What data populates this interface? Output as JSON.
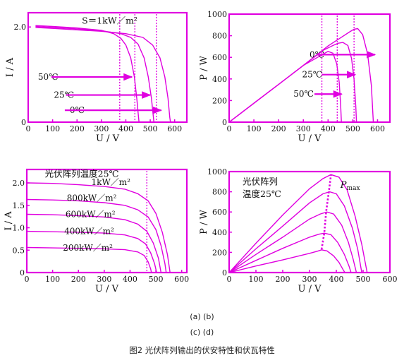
{
  "captions": {
    "line1": "(a)  (b)",
    "line2": "(c)  (d)",
    "figure": "图2 光伏阵列输出的伏安特性和伏瓦特性"
  },
  "colors": {
    "curve": "#e000e0",
    "arrow": "#e000e0",
    "text": "#111111",
    "background": "#ffffff"
  },
  "chart_data": [
    {
      "id": "a",
      "type": "line",
      "xlabel": "U / V",
      "ylabel": "I / A",
      "xlim": [
        0,
        650
      ],
      "ylim": [
        0,
        2.3
      ],
      "xticks": [
        0,
        100,
        200,
        300,
        400,
        500,
        600
      ],
      "xtick_labels": [
        "0",
        "100",
        "200",
        "300",
        "400",
        "500",
        "600"
      ],
      "yticks": [
        0,
        2.0
      ],
      "ytick_labels": [
        "0",
        "2.0"
      ],
      "annotations": [
        {
          "text": "S＝1kW／m²",
          "x": 220,
          "y": 2.13
        }
      ],
      "series": [
        {
          "name": "50℃",
          "label_pos": [
            40,
            0.95
          ],
          "marker_x": 375,
          "points": [
            [
              30,
              2.03
            ],
            [
              100,
              2.01
            ],
            [
              200,
              1.98
            ],
            [
              300,
              1.93
            ],
            [
              350,
              1.86
            ],
            [
              380,
              1.76
            ],
            [
              400,
              1.62
            ],
            [
              420,
              1.35
            ],
            [
              435,
              0.95
            ],
            [
              445,
              0.5
            ],
            [
              452,
              0.1
            ],
            [
              454,
              0
            ]
          ]
        },
        {
          "name": "25℃",
          "label_pos": [
            105,
            0.57
          ],
          "marker_x": 437,
          "points": [
            [
              30,
              2.01
            ],
            [
              100,
              1.99
            ],
            [
              200,
              1.96
            ],
            [
              300,
              1.92
            ],
            [
              380,
              1.86
            ],
            [
              420,
              1.78
            ],
            [
              450,
              1.64
            ],
            [
              475,
              1.35
            ],
            [
              492,
              0.95
            ],
            [
              505,
              0.5
            ],
            [
              513,
              0.1
            ],
            [
              515,
              0
            ]
          ]
        },
        {
          "name": "0℃",
          "label_pos": [
            170,
            0.25
          ],
          "marker_x": 525,
          "points": [
            [
              30,
              1.99
            ],
            [
              100,
              1.97
            ],
            [
              200,
              1.94
            ],
            [
              300,
              1.91
            ],
            [
              400,
              1.86
            ],
            [
              470,
              1.78
            ],
            [
              510,
              1.62
            ],
            [
              540,
              1.35
            ],
            [
              560,
              0.95
            ],
            [
              573,
              0.5
            ],
            [
              580,
              0.1
            ],
            [
              583,
              0
            ]
          ]
        }
      ],
      "arrows": [
        {
          "y": 0.95,
          "x_start": 95,
          "x_end": 425
        },
        {
          "y": 0.57,
          "x_start": 155,
          "x_end": 500
        },
        {
          "y": 0.25,
          "x_start": 150,
          "x_end": 545
        }
      ]
    },
    {
      "id": "b",
      "type": "line",
      "xlabel": "U / V",
      "ylabel": "P / W",
      "xlim": [
        0,
        650
      ],
      "ylim": [
        0,
        1000
      ],
      "xticks": [
        0,
        100,
        200,
        300,
        400,
        500,
        600
      ],
      "xtick_labels": [
        "0",
        "100",
        "200",
        "300",
        "400",
        "500",
        "600"
      ],
      "yticks": [
        0,
        200,
        400,
        600,
        800,
        1000
      ],
      "ytick_labels": [
        "0",
        "200",
        "400",
        "600",
        "800",
        "1000"
      ],
      "series": [
        {
          "name": "0℃",
          "label_pos": [
            325,
            625
          ],
          "marker_x": 505,
          "points": [
            [
              0,
              0
            ],
            [
              100,
              175
            ],
            [
              200,
              350
            ],
            [
              300,
              525
            ],
            [
              400,
              705
            ],
            [
              450,
              780
            ],
            [
              490,
              840
            ],
            [
              505,
              860
            ],
            [
              520,
              866
            ],
            [
              540,
              810
            ],
            [
              560,
              630
            ],
            [
              575,
              340
            ],
            [
              583,
              0
            ]
          ]
        },
        {
          "name": "25℃",
          "label_pos": [
            295,
            440
          ],
          "marker_x": 437,
          "points": [
            [
              0,
              0
            ],
            [
              100,
              175
            ],
            [
              200,
              350
            ],
            [
              300,
              525
            ],
            [
              380,
              665
            ],
            [
              420,
              710
            ],
            [
              440,
              730
            ],
            [
              460,
              738
            ],
            [
              480,
              710
            ],
            [
              495,
              590
            ],
            [
              505,
              400
            ],
            [
              512,
              150
            ],
            [
              515,
              0
            ]
          ]
        },
        {
          "name": "50℃",
          "label_pos": [
            260,
            260
          ],
          "marker_x": 375,
          "points": [
            [
              0,
              0
            ],
            [
              100,
              175
            ],
            [
              200,
              350
            ],
            [
              300,
              525
            ],
            [
              350,
              590
            ],
            [
              380,
              630
            ],
            [
              400,
              655
            ],
            [
              420,
              638
            ],
            [
              435,
              540
            ],
            [
              445,
              370
            ],
            [
              451,
              150
            ],
            [
              454,
              0
            ]
          ]
        }
      ],
      "arrows": [
        {
          "y": 625,
          "x_start": 355,
          "x_end": 590
        },
        {
          "y": 440,
          "x_start": 375,
          "x_end": 510
        },
        {
          "y": 260,
          "x_start": 345,
          "x_end": 455
        }
      ]
    },
    {
      "id": "c",
      "type": "line",
      "xlabel": "U / V",
      "ylabel": "I / A",
      "xlim": [
        0,
        620
      ],
      "ylim": [
        0,
        2.3
      ],
      "xticks": [
        0,
        100,
        200,
        300,
        400,
        500,
        600
      ],
      "xtick_labels": [
        "0",
        "100",
        "200",
        "300",
        "400",
        "500",
        "600"
      ],
      "yticks": [
        0,
        0.5,
        1.0,
        1.5,
        2.0
      ],
      "ytick_labels": [
        "0",
        "0.5",
        "1.0",
        "1.5",
        "2.0"
      ],
      "annotations": [
        {
          "text": "光伏阵列温度25℃",
          "x": 70,
          "y": 2.2
        }
      ],
      "marker_x": 465,
      "series": [
        {
          "name": "1kW／m²",
          "label_pos": [
            250,
            2.02
          ],
          "points": [
            [
              0,
              2.0
            ],
            [
              100,
              1.99
            ],
            [
              200,
              1.96
            ],
            [
              300,
              1.92
            ],
            [
              380,
              1.86
            ],
            [
              430,
              1.76
            ],
            [
              470,
              1.6
            ],
            [
              500,
              1.32
            ],
            [
              525,
              0.9
            ],
            [
              545,
              0.4
            ],
            [
              555,
              0
            ]
          ]
        },
        {
          "name": "800kW／m²",
          "label_pos": [
            155,
            1.66
          ],
          "points": [
            [
              0,
              1.63
            ],
            [
              100,
              1.62
            ],
            [
              200,
              1.6
            ],
            [
              300,
              1.56
            ],
            [
              380,
              1.5
            ],
            [
              430,
              1.4
            ],
            [
              470,
              1.24
            ],
            [
              500,
              0.96
            ],
            [
              520,
              0.6
            ],
            [
              535,
              0.2
            ],
            [
              540,
              0
            ]
          ]
        },
        {
          "name": "600kW／m²",
          "label_pos": [
            150,
            1.3
          ],
          "points": [
            [
              0,
              1.3
            ],
            [
              100,
              1.29
            ],
            [
              200,
              1.27
            ],
            [
              300,
              1.24
            ],
            [
              380,
              1.18
            ],
            [
              430,
              1.08
            ],
            [
              465,
              0.92
            ],
            [
              490,
              0.66
            ],
            [
              510,
              0.32
            ],
            [
              520,
              0
            ]
          ]
        },
        {
          "name": "400kW／m²",
          "label_pos": [
            145,
            0.92
          ],
          "points": [
            [
              0,
              0.92
            ],
            [
              100,
              0.91
            ],
            [
              200,
              0.9
            ],
            [
              300,
              0.88
            ],
            [
              380,
              0.84
            ],
            [
              430,
              0.76
            ],
            [
              460,
              0.64
            ],
            [
              480,
              0.44
            ],
            [
              495,
              0.2
            ],
            [
              503,
              0
            ]
          ]
        },
        {
          "name": "200kW／m²",
          "label_pos": [
            140,
            0.55
          ],
          "points": [
            [
              0,
              0.56
            ],
            [
              100,
              0.55
            ],
            [
              200,
              0.54
            ],
            [
              300,
              0.53
            ],
            [
              380,
              0.51
            ],
            [
              430,
              0.46
            ],
            [
              455,
              0.38
            ],
            [
              470,
              0.24
            ],
            [
              480,
              0.08
            ],
            [
              483,
              0
            ]
          ]
        }
      ]
    },
    {
      "id": "d",
      "type": "line",
      "xlabel": "U / V",
      "ylabel": "P / W",
      "xlim": [
        0,
        600
      ],
      "ylim": [
        0,
        1000
      ],
      "xticks": [
        0,
        100,
        200,
        300,
        400,
        500,
        600
      ],
      "xtick_labels": [
        "0",
        "100",
        "200",
        "300",
        "400",
        "500",
        "600"
      ],
      "yticks": [
        0,
        200,
        400,
        600,
        800,
        1000
      ],
      "ytick_labels": [
        "0",
        "200",
        "400",
        "600",
        "800",
        "1000"
      ],
      "annotations": [
        {
          "text": "光伏阵列",
          "x": 50,
          "y": 900
        },
        {
          "text": "温度25℃",
          "x": 50,
          "y": 775
        }
      ],
      "pmax_label": {
        "text": "P",
        "sub": "max",
        "x": 310,
        "y": 840
      },
      "pmax_points": [
        [
          345,
          230
        ],
        [
          355,
          390
        ],
        [
          362,
          605
        ],
        [
          372,
          800
        ],
        [
          380,
          965
        ]
      ],
      "series": [
        {
          "name": "1kW／m²",
          "points": [
            [
              0,
              0
            ],
            [
              100,
              290
            ],
            [
              200,
              570
            ],
            [
              300,
              830
            ],
            [
              350,
              930
            ],
            [
              380,
              970
            ],
            [
              410,
              945
            ],
            [
              440,
              820
            ],
            [
              470,
              560
            ],
            [
              495,
              280
            ],
            [
              515,
              0
            ]
          ]
        },
        {
          "name": "800kW／m²",
          "points": [
            [
              0,
              0
            ],
            [
              100,
              235
            ],
            [
              200,
              460
            ],
            [
              300,
              690
            ],
            [
              350,
              780
            ],
            [
              375,
              800
            ],
            [
              400,
              780
            ],
            [
              430,
              660
            ],
            [
              460,
              440
            ],
            [
              480,
              230
            ],
            [
              495,
              0
            ]
          ]
        },
        {
          "name": "600kW／m²",
          "points": [
            [
              0,
              0
            ],
            [
              100,
              180
            ],
            [
              200,
              350
            ],
            [
              300,
              530
            ],
            [
              340,
              580
            ],
            [
              365,
              600
            ],
            [
              390,
              580
            ],
            [
              420,
              470
            ],
            [
              445,
              300
            ],
            [
              462,
              140
            ],
            [
              475,
              0
            ]
          ]
        },
        {
          "name": "400kW／m²",
          "points": [
            [
              0,
              0
            ],
            [
              100,
              120
            ],
            [
              200,
              240
            ],
            [
              300,
              350
            ],
            [
              335,
              380
            ],
            [
              355,
              390
            ],
            [
              380,
              375
            ],
            [
              405,
              300
            ],
            [
              430,
              180
            ],
            [
              448,
              60
            ],
            [
              455,
              0
            ]
          ]
        },
        {
          "name": "200kW／m²",
          "points": [
            [
              0,
              0
            ],
            [
              100,
              65
            ],
            [
              200,
              125
            ],
            [
              300,
              190
            ],
            [
              330,
              212
            ],
            [
              345,
              225
            ],
            [
              365,
              215
            ],
            [
              390,
              165
            ],
            [
              410,
              100
            ],
            [
              425,
              30
            ],
            [
              432,
              0
            ]
          ]
        }
      ]
    }
  ]
}
